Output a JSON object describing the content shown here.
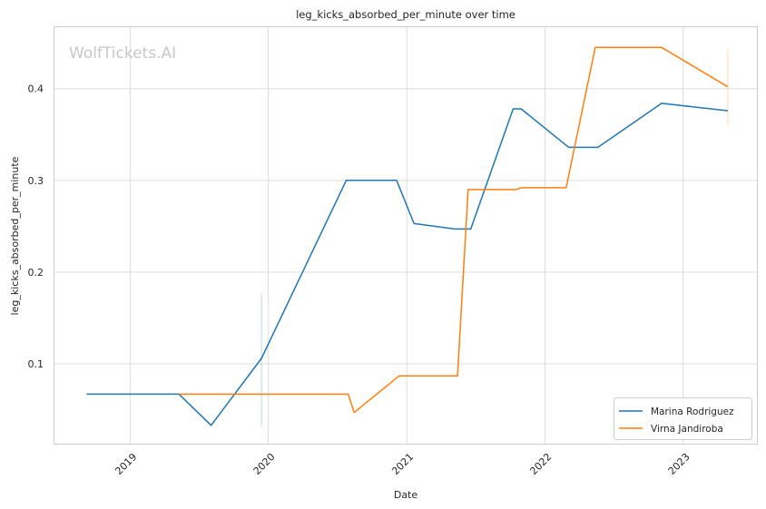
{
  "chart_data": {
    "type": "line",
    "title": "leg_kicks_absorbed_per_minute over time",
    "xlabel": "Date",
    "ylabel": "leg_kicks_absorbed_per_minute",
    "watermark": "WolfTickets.AI",
    "x_ticks": [
      "2019",
      "2020",
      "2021",
      "2022",
      "2023"
    ],
    "y_ticks": [
      "0.1",
      "0.2",
      "0.3",
      "0.4"
    ],
    "xlim": [
      "2018-06-15",
      "2023-07-15"
    ],
    "ylim": [
      0.012,
      0.467
    ],
    "grid": true,
    "legend_position": "bottom-right",
    "series": [
      {
        "name": "Marina Rodriguez",
        "color": "#1f77b4",
        "points": [
          [
            "2018-09-08",
            0.067
          ],
          [
            "2019-05-10",
            0.067
          ],
          [
            "2019-08-03",
            0.033
          ],
          [
            "2019-12-14",
            0.106
          ],
          [
            "2020-07-25",
            0.3
          ],
          [
            "2020-12-05",
            0.3
          ],
          [
            "2021-01-20",
            0.253
          ],
          [
            "2021-05-08",
            0.247
          ],
          [
            "2021-06-19",
            0.247
          ],
          [
            "2021-10-09",
            0.378
          ],
          [
            "2021-10-30",
            0.378
          ],
          [
            "2022-03-05",
            0.336
          ],
          [
            "2022-05-21",
            0.336
          ],
          [
            "2022-11-05",
            0.384
          ],
          [
            "2023-04-29",
            0.376
          ]
        ]
      },
      {
        "name": "Virna Jandiroba",
        "color": "#ff7f0e",
        "points": [
          [
            "2019-05-10",
            0.067
          ],
          [
            "2020-07-30",
            0.067
          ],
          [
            "2020-08-15",
            0.047
          ],
          [
            "2020-12-12",
            0.087
          ],
          [
            "2021-05-15",
            0.087
          ],
          [
            "2021-06-12",
            0.29
          ],
          [
            "2021-10-16",
            0.29
          ],
          [
            "2021-10-30",
            0.292
          ],
          [
            "2022-02-26",
            0.292
          ],
          [
            "2022-05-14",
            0.445
          ],
          [
            "2022-11-05",
            0.445
          ],
          [
            "2023-04-29",
            0.402
          ]
        ]
      }
    ],
    "error_bars": [
      {
        "series": "Marina Rodriguez",
        "x": "2019-12-14",
        "low": 0.032,
        "high": 0.177,
        "color": "#1f77b4"
      },
      {
        "series": "Virna Jandiroba",
        "x": "2023-04-29",
        "low": 0.36,
        "high": 0.444,
        "color": "#ff7f0e"
      }
    ]
  }
}
